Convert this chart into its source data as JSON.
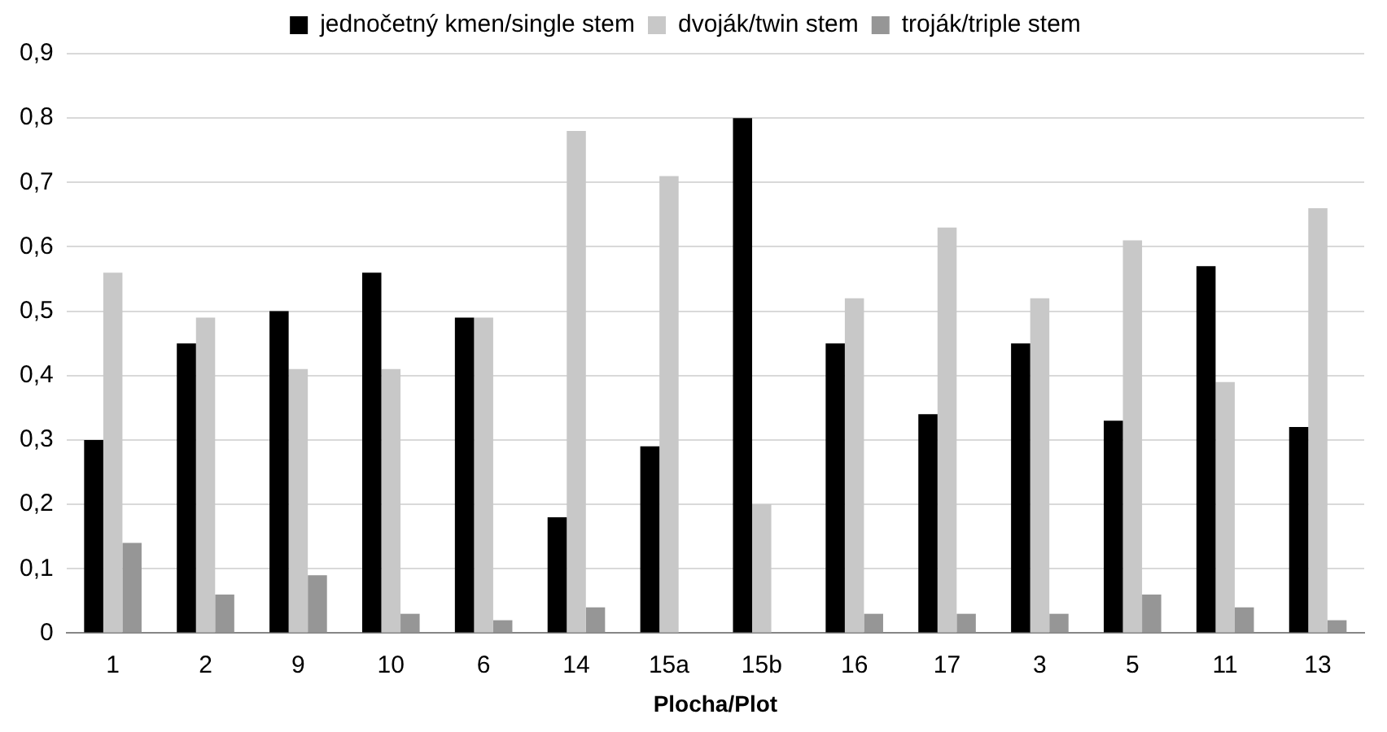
{
  "chart_data": {
    "type": "bar",
    "xlabel": "Plocha/Plot",
    "categories": [
      "1",
      "2",
      "9",
      "10",
      "6",
      "14",
      "15a",
      "15b",
      "16",
      "17",
      "3",
      "5",
      "11",
      "13"
    ],
    "series": [
      {
        "name": "jednočetný kmen/single stem",
        "color": "#000000",
        "values": [
          0.3,
          0.45,
          0.5,
          0.56,
          0.49,
          0.18,
          0.29,
          0.8,
          0.45,
          0.34,
          0.45,
          0.33,
          0.57,
          0.32
        ]
      },
      {
        "name": "dvoják/twin stem",
        "color": "#c8c8c8",
        "values": [
          0.56,
          0.49,
          0.41,
          0.41,
          0.49,
          0.78,
          0.71,
          0.2,
          0.52,
          0.63,
          0.52,
          0.61,
          0.39,
          0.66
        ]
      },
      {
        "name": "troják/triple stem",
        "color": "#969696",
        "values": [
          0.14,
          0.06,
          0.09,
          0.03,
          0.02,
          0.04,
          0,
          0,
          0.03,
          0.03,
          0.03,
          0.06,
          0.04,
          0.02
        ]
      }
    ],
    "ylim": [
      0,
      0.9
    ],
    "yticks": [
      0,
      {
        "value": 0.1,
        "label": "0,1"
      },
      {
        "value": 0.2,
        "label": "0,2"
      },
      {
        "value": 0.3,
        "label": "0,3"
      },
      {
        "value": 0.4,
        "label": "0,4"
      },
      {
        "value": 0.5,
        "label": "0,5"
      },
      {
        "value": 0.6,
        "label": "0,6"
      },
      {
        "value": 0.7,
        "label": "0,7"
      },
      {
        "value": 0.8,
        "label": "0,8"
      },
      {
        "value": 0.9,
        "label": "0,9"
      }
    ],
    "grid": "y",
    "legend": "top"
  }
}
